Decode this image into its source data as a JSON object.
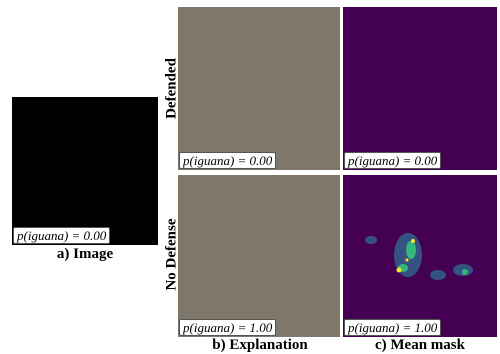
{
  "figure": {
    "image": {
      "label": "p(iguana) = 0.00",
      "caption": "a) Image"
    },
    "rows": [
      {
        "name": "Defended",
        "explanation_label": "p(iguana) = 0.00",
        "mask_label": "p(iguana) = 0.00"
      },
      {
        "name": "No Defense",
        "explanation_label": "p(iguana) = 1.00",
        "mask_label": "p(iguana) = 1.00"
      }
    ],
    "columns": [
      "b) Explanation",
      "c) Mean mask"
    ]
  }
}
